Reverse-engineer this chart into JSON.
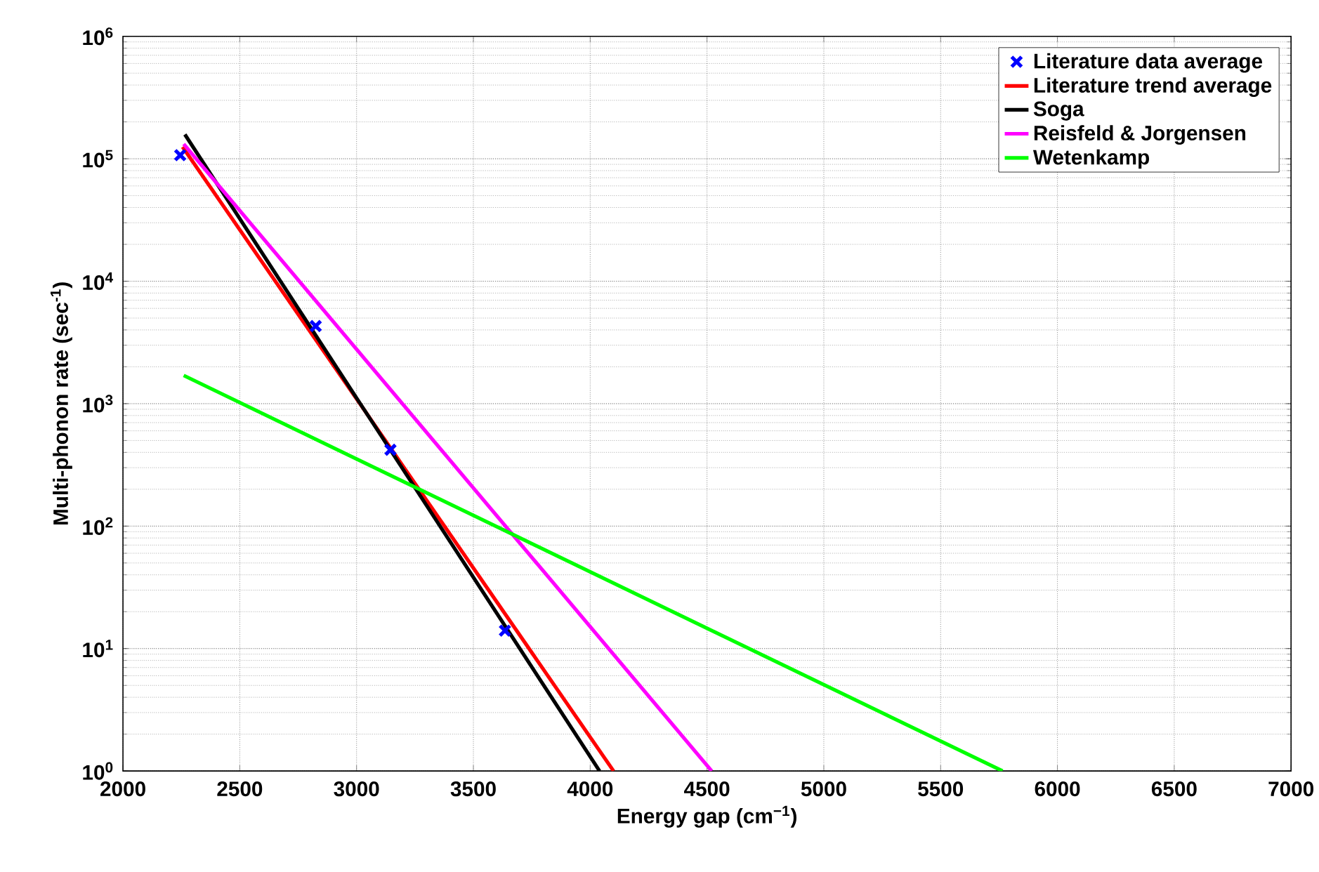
{
  "chart_data": {
    "type": "line",
    "xlabel": "Energy gap (cm$^{−1}$)",
    "ylabel": "Multi-phonon rate (sec$^{-1}$)",
    "log": "y",
    "grid": true,
    "legend": "top right",
    "xlim": [
      2000,
      7000
    ],
    "xticks": [
      2000,
      2500,
      3000,
      3500,
      4000,
      4500,
      5000,
      5500,
      6000,
      6500,
      7000
    ],
    "ylim": [
      1,
      1000000
    ],
    "yticks": [
      {
        "value": 1,
        "label": "10$^{0}$"
      },
      {
        "value": 10,
        "label": "10$^{1}$"
      },
      {
        "value": 100,
        "label": "10$^{2}$"
      },
      {
        "value": 1000,
        "label": "10$^{3}$"
      },
      {
        "value": 10000,
        "label": "10$^{4}$"
      },
      {
        "value": 100000,
        "label": "10$^{5}$"
      },
      {
        "value": 1000000,
        "label": "10$^{6}$"
      }
    ],
    "series": [
      {
        "name": "Literature data average",
        "type": "scatter",
        "marker": "cross",
        "color": "#0000ff",
        "x": [
          2245,
          2825,
          3145,
          3635
        ],
        "values": [
          107000,
          4300,
          420,
          14
        ]
      },
      {
        "name": "Literature trend average",
        "color": "#ff0000",
        "x": [
          2255,
          4100
        ],
        "values": [
          125000,
          1
        ]
      },
      {
        "name": "Soga",
        "color": "#000000",
        "x": [
          2265,
          4040
        ],
        "values": [
          158000,
          1
        ]
      },
      {
        "name": "Reisfeld & Jorgensen",
        "color": "#ff00ff",
        "x": [
          2260,
          4520
        ],
        "values": [
          132000,
          1
        ]
      },
      {
        "name": "Wetenkamp",
        "color": "#00ff00",
        "x": [
          2260,
          5765
        ],
        "values": [
          1700,
          1
        ]
      }
    ]
  }
}
